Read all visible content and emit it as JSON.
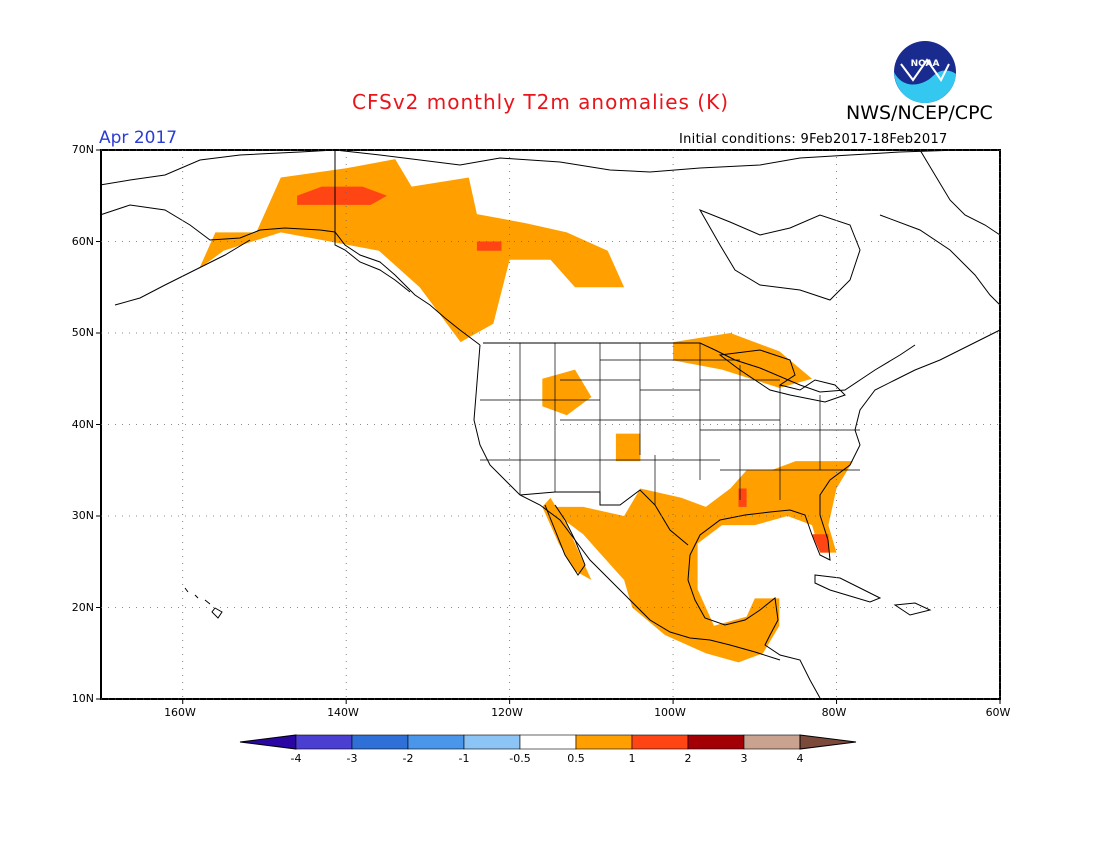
{
  "header": {
    "title": "CFSv2 monthly T2m anomalies (K)",
    "agency": "NWS/NCEP/CPC",
    "month": "Apr 2017",
    "initial_conditions": "Initial conditions: 9Feb2017-18Feb2017",
    "logo_text": "NOAA"
  },
  "axes": {
    "lat_labels": [
      "70N",
      "60N",
      "50N",
      "40N",
      "30N",
      "20N",
      "10N"
    ],
    "lat_values": [
      70,
      60,
      50,
      40,
      30,
      20,
      10
    ],
    "lon_labels": [
      "160W",
      "140W",
      "120W",
      "100W",
      "80W",
      "60W"
    ],
    "lon_values": [
      -160,
      -140,
      -120,
      -100,
      -80,
      -60
    ],
    "lon_range": [
      -170,
      -60
    ],
    "lat_range": [
      10,
      70
    ],
    "grid": "dotted"
  },
  "colorbar": {
    "labels": [
      "-4",
      "-3",
      "-2",
      "-1",
      "-0.5",
      "0.5",
      "1",
      "2",
      "3",
      "4"
    ],
    "colors": [
      "#2a06a3",
      "#4a3fd0",
      "#2f6fd8",
      "#4a96ea",
      "#8cc4f5",
      "#ffffff",
      "#ffa000",
      "#ff4513",
      "#a30006",
      "#c9a38f",
      "#7b4a3a"
    ]
  },
  "anomaly_regions": [
    {
      "level": "0.5-1",
      "color": "#ffa000",
      "lonlat": [
        [
          -151,
          61
        ],
        [
          -148,
          67
        ],
        [
          -140,
          68
        ],
        [
          -134,
          69
        ],
        [
          -132,
          66
        ],
        [
          -125,
          67
        ],
        [
          -124,
          63
        ],
        [
          -118,
          62
        ],
        [
          -113,
          61
        ],
        [
          -108,
          59
        ],
        [
          -106,
          55
        ],
        [
          -112,
          55
        ],
        [
          -115,
          58
        ],
        [
          -120,
          58
        ],
        [
          -122,
          51
        ],
        [
          -126,
          49
        ],
        [
          -131,
          55
        ],
        [
          -136,
          59
        ],
        [
          -142,
          60
        ],
        [
          -148,
          61
        ],
        [
          -155,
          59
        ],
        [
          -158,
          57
        ],
        [
          -156,
          61
        ]
      ]
    },
    {
      "level": "0.5-1",
      "color": "#ffa000",
      "lonlat": [
        [
          -100,
          49
        ],
        [
          -93,
          50
        ],
        [
          -87,
          48
        ],
        [
          -83,
          45
        ],
        [
          -87,
          44
        ],
        [
          -94,
          46
        ],
        [
          -100,
          47
        ]
      ]
    },
    {
      "level": "0.5-1",
      "color": "#ffa000",
      "lonlat": [
        [
          -116,
          45
        ],
        [
          -112,
          46
        ],
        [
          -110,
          43
        ],
        [
          -113,
          41
        ],
        [
          -116,
          42
        ]
      ]
    },
    {
      "level": "0.5-1",
      "color": "#ffa000",
      "lonlat": [
        [
          -107,
          39
        ],
        [
          -104,
          39
        ],
        [
          -104,
          36
        ],
        [
          -107,
          36
        ]
      ]
    },
    {
      "level": "0.5-1",
      "color": "#ffa000",
      "lonlat": [
        [
          -115,
          31
        ],
        [
          -111,
          31
        ],
        [
          -106,
          30
        ],
        [
          -104,
          33
        ],
        [
          -99,
          32
        ],
        [
          -96,
          31
        ],
        [
          -93,
          33
        ],
        [
          -91,
          35
        ],
        [
          -88,
          35
        ],
        [
          -85,
          36
        ],
        [
          -80,
          36
        ],
        [
          -78,
          36
        ],
        [
          -80,
          33
        ],
        [
          -81,
          29
        ],
        [
          -80,
          26
        ],
        [
          -82,
          26
        ],
        [
          -83,
          29
        ],
        [
          -86,
          30
        ],
        [
          -90,
          29
        ],
        [
          -94,
          29
        ],
        [
          -97,
          27
        ],
        [
          -97,
          22
        ],
        [
          -95,
          18
        ],
        [
          -91,
          19
        ],
        [
          -90,
          21
        ],
        [
          -87,
          21
        ],
        [
          -87,
          18
        ],
        [
          -89,
          15
        ],
        [
          -92,
          14
        ],
        [
          -96,
          15
        ],
        [
          -101,
          17
        ],
        [
          -105,
          20
        ],
        [
          -106,
          23
        ],
        [
          -109,
          26
        ],
        [
          -111,
          28
        ],
        [
          -114,
          30
        ]
      ]
    },
    {
      "level": "0.5-1",
      "color": "#ffa000",
      "lonlat": [
        [
          -115,
          32
        ],
        [
          -113,
          29
        ],
        [
          -111,
          25
        ],
        [
          -110,
          23
        ],
        [
          -112,
          24
        ],
        [
          -114,
          27
        ],
        [
          -116,
          31
        ]
      ]
    },
    {
      "level": "1-2",
      "color": "#ff4513",
      "lonlat": [
        [
          -146,
          64
        ],
        [
          -137,
          64
        ],
        [
          -135,
          65
        ],
        [
          -138,
          66
        ],
        [
          -143,
          66
        ],
        [
          -146,
          65
        ]
      ]
    },
    {
      "level": "1-2",
      "color": "#ff4513",
      "lonlat": [
        [
          -124,
          60
        ],
        [
          -121,
          60
        ],
        [
          -121,
          59
        ],
        [
          -124,
          59
        ]
      ]
    },
    {
      "level": "1-2",
      "color": "#ff4513",
      "lonlat": [
        [
          -83,
          28
        ],
        [
          -81,
          28
        ],
        [
          -81,
          26
        ],
        [
          -82,
          26
        ]
      ]
    },
    {
      "level": "1-2",
      "color": "#ff4513",
      "lonlat": [
        [
          -92,
          33
        ],
        [
          -91,
          33
        ],
        [
          -91,
          31
        ],
        [
          -92,
          31
        ]
      ]
    }
  ]
}
